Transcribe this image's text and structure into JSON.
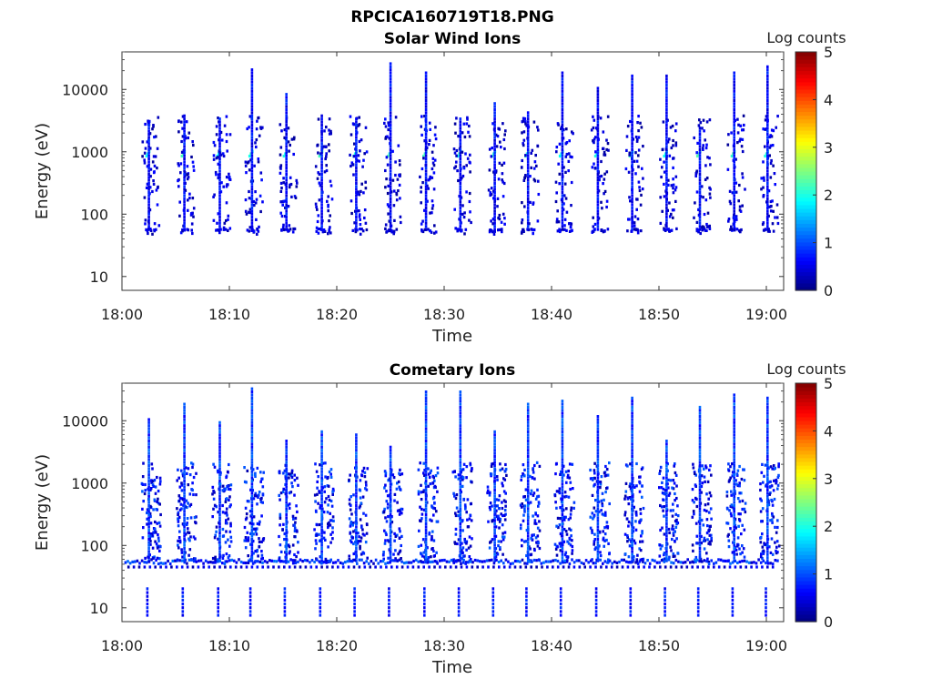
{
  "figure": {
    "title": "RPCICA160719T18.PNG"
  },
  "chart_data": [
    {
      "type": "heatmap",
      "title": "Solar Wind Ions",
      "xlabel": "Time",
      "ylabel": "Energy (eV)",
      "x_ticks": [
        "18:00",
        "18:10",
        "18:20",
        "18:30",
        "18:40",
        "18:50",
        "19:00"
      ],
      "y_ticks": [
        "10",
        "100",
        "1000",
        "10000"
      ],
      "y_scale": "log",
      "ylim": [
        6,
        40000
      ],
      "colorbar": {
        "label": "Log counts",
        "ticks": [
          "0",
          "1",
          "2",
          "3",
          "4",
          "5"
        ],
        "range": [
          0,
          5
        ]
      },
      "pulse_times_min": [
        2.3,
        5.6,
        8.9,
        11.9,
        15.1,
        18.4,
        21.6,
        24.8,
        28.1,
        31.3,
        34.5,
        37.6,
        40.8,
        44.1,
        47.3,
        50.5,
        53.6,
        56.8,
        59.9
      ],
      "core_energy_eV": 1000,
      "core_log_counts": 1.9
    },
    {
      "type": "heatmap",
      "title": "Cometary Ions",
      "xlabel": "Time",
      "ylabel": "Energy (eV)",
      "x_ticks": [
        "18:00",
        "18:10",
        "18:20",
        "18:30",
        "18:40",
        "18:50",
        "19:00"
      ],
      "y_ticks": [
        "10",
        "100",
        "1000",
        "10000"
      ],
      "y_scale": "log",
      "ylim": [
        6,
        40000
      ],
      "colorbar": {
        "label": "Log counts",
        "ticks": [
          "0",
          "1",
          "2",
          "3",
          "4",
          "5"
        ],
        "range": [
          0,
          5
        ]
      },
      "pulse_times_min": [
        2.3,
        5.6,
        8.9,
        11.9,
        15.1,
        18.4,
        21.6,
        24.8,
        28.1,
        31.3,
        34.5,
        37.6,
        40.8,
        44.1,
        47.3,
        50.5,
        53.6,
        56.8,
        59.9
      ],
      "baseline_energy_eV": 58,
      "low_band_energy_eV": [
        8,
        22
      ]
    }
  ]
}
